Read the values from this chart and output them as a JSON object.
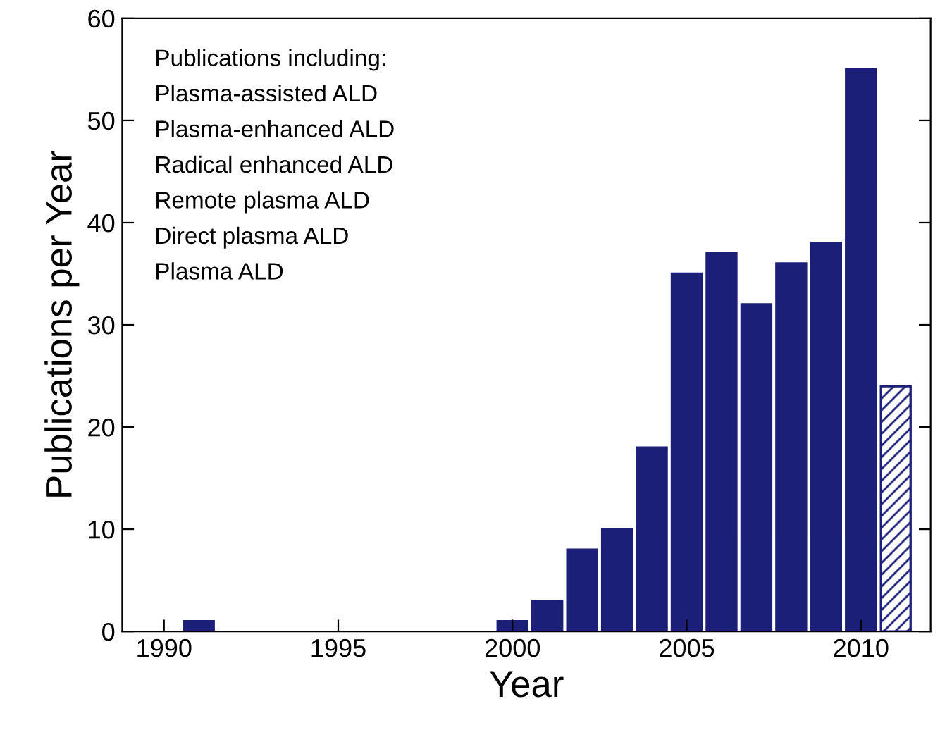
{
  "chart_data": {
    "type": "bar",
    "xlabel": "Year",
    "ylabel": "Publications per Year",
    "annotations": [
      "Publications including:",
      "Plasma-assisted ALD",
      "Plasma-enhanced ALD",
      "Radical enhanced ALD",
      "Remote plasma ALD",
      "Direct plasma ALD",
      "Plasma ALD"
    ],
    "series": [
      {
        "color": "#1c1f78",
        "x": [
          1991,
          2000,
          2001,
          2002,
          2003,
          2004,
          2005,
          2006,
          2007,
          2008,
          2009,
          2010
        ],
        "values": [
          1,
          1,
          3,
          8,
          10,
          18,
          35,
          37,
          32,
          36,
          38,
          55
        ]
      },
      {
        "color": "#1c1f78",
        "x": [
          2011
        ],
        "values": [
          24
        ]
      }
    ],
    "xlim": [
      1988.8,
      2012
    ],
    "xticks": [
      1990,
      1995,
      2000,
      2005,
      2010
    ],
    "ylim": [
      0,
      60
    ],
    "yticks": [
      0,
      10,
      20,
      30,
      40,
      50,
      60
    ],
    "grid": false,
    "legend": false
  }
}
